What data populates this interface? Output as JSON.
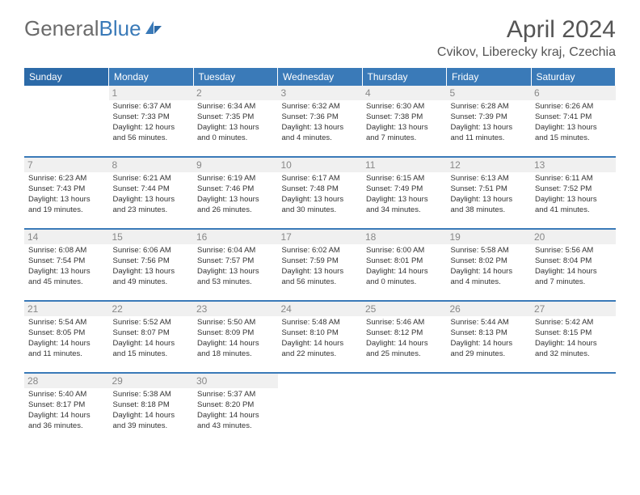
{
  "logo": {
    "text_gray": "General",
    "text_blue": "Blue"
  },
  "title": "April 2024",
  "location": "Cvikov, Liberecky kraj, Czechia",
  "colors": {
    "header_bg": "#3a7ab8",
    "header_text": "#ffffff",
    "day_num_bg": "#f0f0f0",
    "day_num_color": "#888888",
    "cell_text": "#333333",
    "border": "#3a7ab8",
    "logo_gray": "#6b6b6b",
    "logo_blue": "#3a7ab8",
    "title_color": "#555555"
  },
  "weekdays": [
    "Sunday",
    "Monday",
    "Tuesday",
    "Wednesday",
    "Thursday",
    "Friday",
    "Saturday"
  ],
  "weeks": [
    [
      null,
      {
        "n": "1",
        "sr": "Sunrise: 6:37 AM",
        "ss": "Sunset: 7:33 PM",
        "d1": "Daylight: 12 hours",
        "d2": "and 56 minutes."
      },
      {
        "n": "2",
        "sr": "Sunrise: 6:34 AM",
        "ss": "Sunset: 7:35 PM",
        "d1": "Daylight: 13 hours",
        "d2": "and 0 minutes."
      },
      {
        "n": "3",
        "sr": "Sunrise: 6:32 AM",
        "ss": "Sunset: 7:36 PM",
        "d1": "Daylight: 13 hours",
        "d2": "and 4 minutes."
      },
      {
        "n": "4",
        "sr": "Sunrise: 6:30 AM",
        "ss": "Sunset: 7:38 PM",
        "d1": "Daylight: 13 hours",
        "d2": "and 7 minutes."
      },
      {
        "n": "5",
        "sr": "Sunrise: 6:28 AM",
        "ss": "Sunset: 7:39 PM",
        "d1": "Daylight: 13 hours",
        "d2": "and 11 minutes."
      },
      {
        "n": "6",
        "sr": "Sunrise: 6:26 AM",
        "ss": "Sunset: 7:41 PM",
        "d1": "Daylight: 13 hours",
        "d2": "and 15 minutes."
      }
    ],
    [
      {
        "n": "7",
        "sr": "Sunrise: 6:23 AM",
        "ss": "Sunset: 7:43 PM",
        "d1": "Daylight: 13 hours",
        "d2": "and 19 minutes."
      },
      {
        "n": "8",
        "sr": "Sunrise: 6:21 AM",
        "ss": "Sunset: 7:44 PM",
        "d1": "Daylight: 13 hours",
        "d2": "and 23 minutes."
      },
      {
        "n": "9",
        "sr": "Sunrise: 6:19 AM",
        "ss": "Sunset: 7:46 PM",
        "d1": "Daylight: 13 hours",
        "d2": "and 26 minutes."
      },
      {
        "n": "10",
        "sr": "Sunrise: 6:17 AM",
        "ss": "Sunset: 7:48 PM",
        "d1": "Daylight: 13 hours",
        "d2": "and 30 minutes."
      },
      {
        "n": "11",
        "sr": "Sunrise: 6:15 AM",
        "ss": "Sunset: 7:49 PM",
        "d1": "Daylight: 13 hours",
        "d2": "and 34 minutes."
      },
      {
        "n": "12",
        "sr": "Sunrise: 6:13 AM",
        "ss": "Sunset: 7:51 PM",
        "d1": "Daylight: 13 hours",
        "d2": "and 38 minutes."
      },
      {
        "n": "13",
        "sr": "Sunrise: 6:11 AM",
        "ss": "Sunset: 7:52 PM",
        "d1": "Daylight: 13 hours",
        "d2": "and 41 minutes."
      }
    ],
    [
      {
        "n": "14",
        "sr": "Sunrise: 6:08 AM",
        "ss": "Sunset: 7:54 PM",
        "d1": "Daylight: 13 hours",
        "d2": "and 45 minutes."
      },
      {
        "n": "15",
        "sr": "Sunrise: 6:06 AM",
        "ss": "Sunset: 7:56 PM",
        "d1": "Daylight: 13 hours",
        "d2": "and 49 minutes."
      },
      {
        "n": "16",
        "sr": "Sunrise: 6:04 AM",
        "ss": "Sunset: 7:57 PM",
        "d1": "Daylight: 13 hours",
        "d2": "and 53 minutes."
      },
      {
        "n": "17",
        "sr": "Sunrise: 6:02 AM",
        "ss": "Sunset: 7:59 PM",
        "d1": "Daylight: 13 hours",
        "d2": "and 56 minutes."
      },
      {
        "n": "18",
        "sr": "Sunrise: 6:00 AM",
        "ss": "Sunset: 8:01 PM",
        "d1": "Daylight: 14 hours",
        "d2": "and 0 minutes."
      },
      {
        "n": "19",
        "sr": "Sunrise: 5:58 AM",
        "ss": "Sunset: 8:02 PM",
        "d1": "Daylight: 14 hours",
        "d2": "and 4 minutes."
      },
      {
        "n": "20",
        "sr": "Sunrise: 5:56 AM",
        "ss": "Sunset: 8:04 PM",
        "d1": "Daylight: 14 hours",
        "d2": "and 7 minutes."
      }
    ],
    [
      {
        "n": "21",
        "sr": "Sunrise: 5:54 AM",
        "ss": "Sunset: 8:05 PM",
        "d1": "Daylight: 14 hours",
        "d2": "and 11 minutes."
      },
      {
        "n": "22",
        "sr": "Sunrise: 5:52 AM",
        "ss": "Sunset: 8:07 PM",
        "d1": "Daylight: 14 hours",
        "d2": "and 15 minutes."
      },
      {
        "n": "23",
        "sr": "Sunrise: 5:50 AM",
        "ss": "Sunset: 8:09 PM",
        "d1": "Daylight: 14 hours",
        "d2": "and 18 minutes."
      },
      {
        "n": "24",
        "sr": "Sunrise: 5:48 AM",
        "ss": "Sunset: 8:10 PM",
        "d1": "Daylight: 14 hours",
        "d2": "and 22 minutes."
      },
      {
        "n": "25",
        "sr": "Sunrise: 5:46 AM",
        "ss": "Sunset: 8:12 PM",
        "d1": "Daylight: 14 hours",
        "d2": "and 25 minutes."
      },
      {
        "n": "26",
        "sr": "Sunrise: 5:44 AM",
        "ss": "Sunset: 8:13 PM",
        "d1": "Daylight: 14 hours",
        "d2": "and 29 minutes."
      },
      {
        "n": "27",
        "sr": "Sunrise: 5:42 AM",
        "ss": "Sunset: 8:15 PM",
        "d1": "Daylight: 14 hours",
        "d2": "and 32 minutes."
      }
    ],
    [
      {
        "n": "28",
        "sr": "Sunrise: 5:40 AM",
        "ss": "Sunset: 8:17 PM",
        "d1": "Daylight: 14 hours",
        "d2": "and 36 minutes."
      },
      {
        "n": "29",
        "sr": "Sunrise: 5:38 AM",
        "ss": "Sunset: 8:18 PM",
        "d1": "Daylight: 14 hours",
        "d2": "and 39 minutes."
      },
      {
        "n": "30",
        "sr": "Sunrise: 5:37 AM",
        "ss": "Sunset: 8:20 PM",
        "d1": "Daylight: 14 hours",
        "d2": "and 43 minutes."
      },
      null,
      null,
      null,
      null
    ]
  ]
}
